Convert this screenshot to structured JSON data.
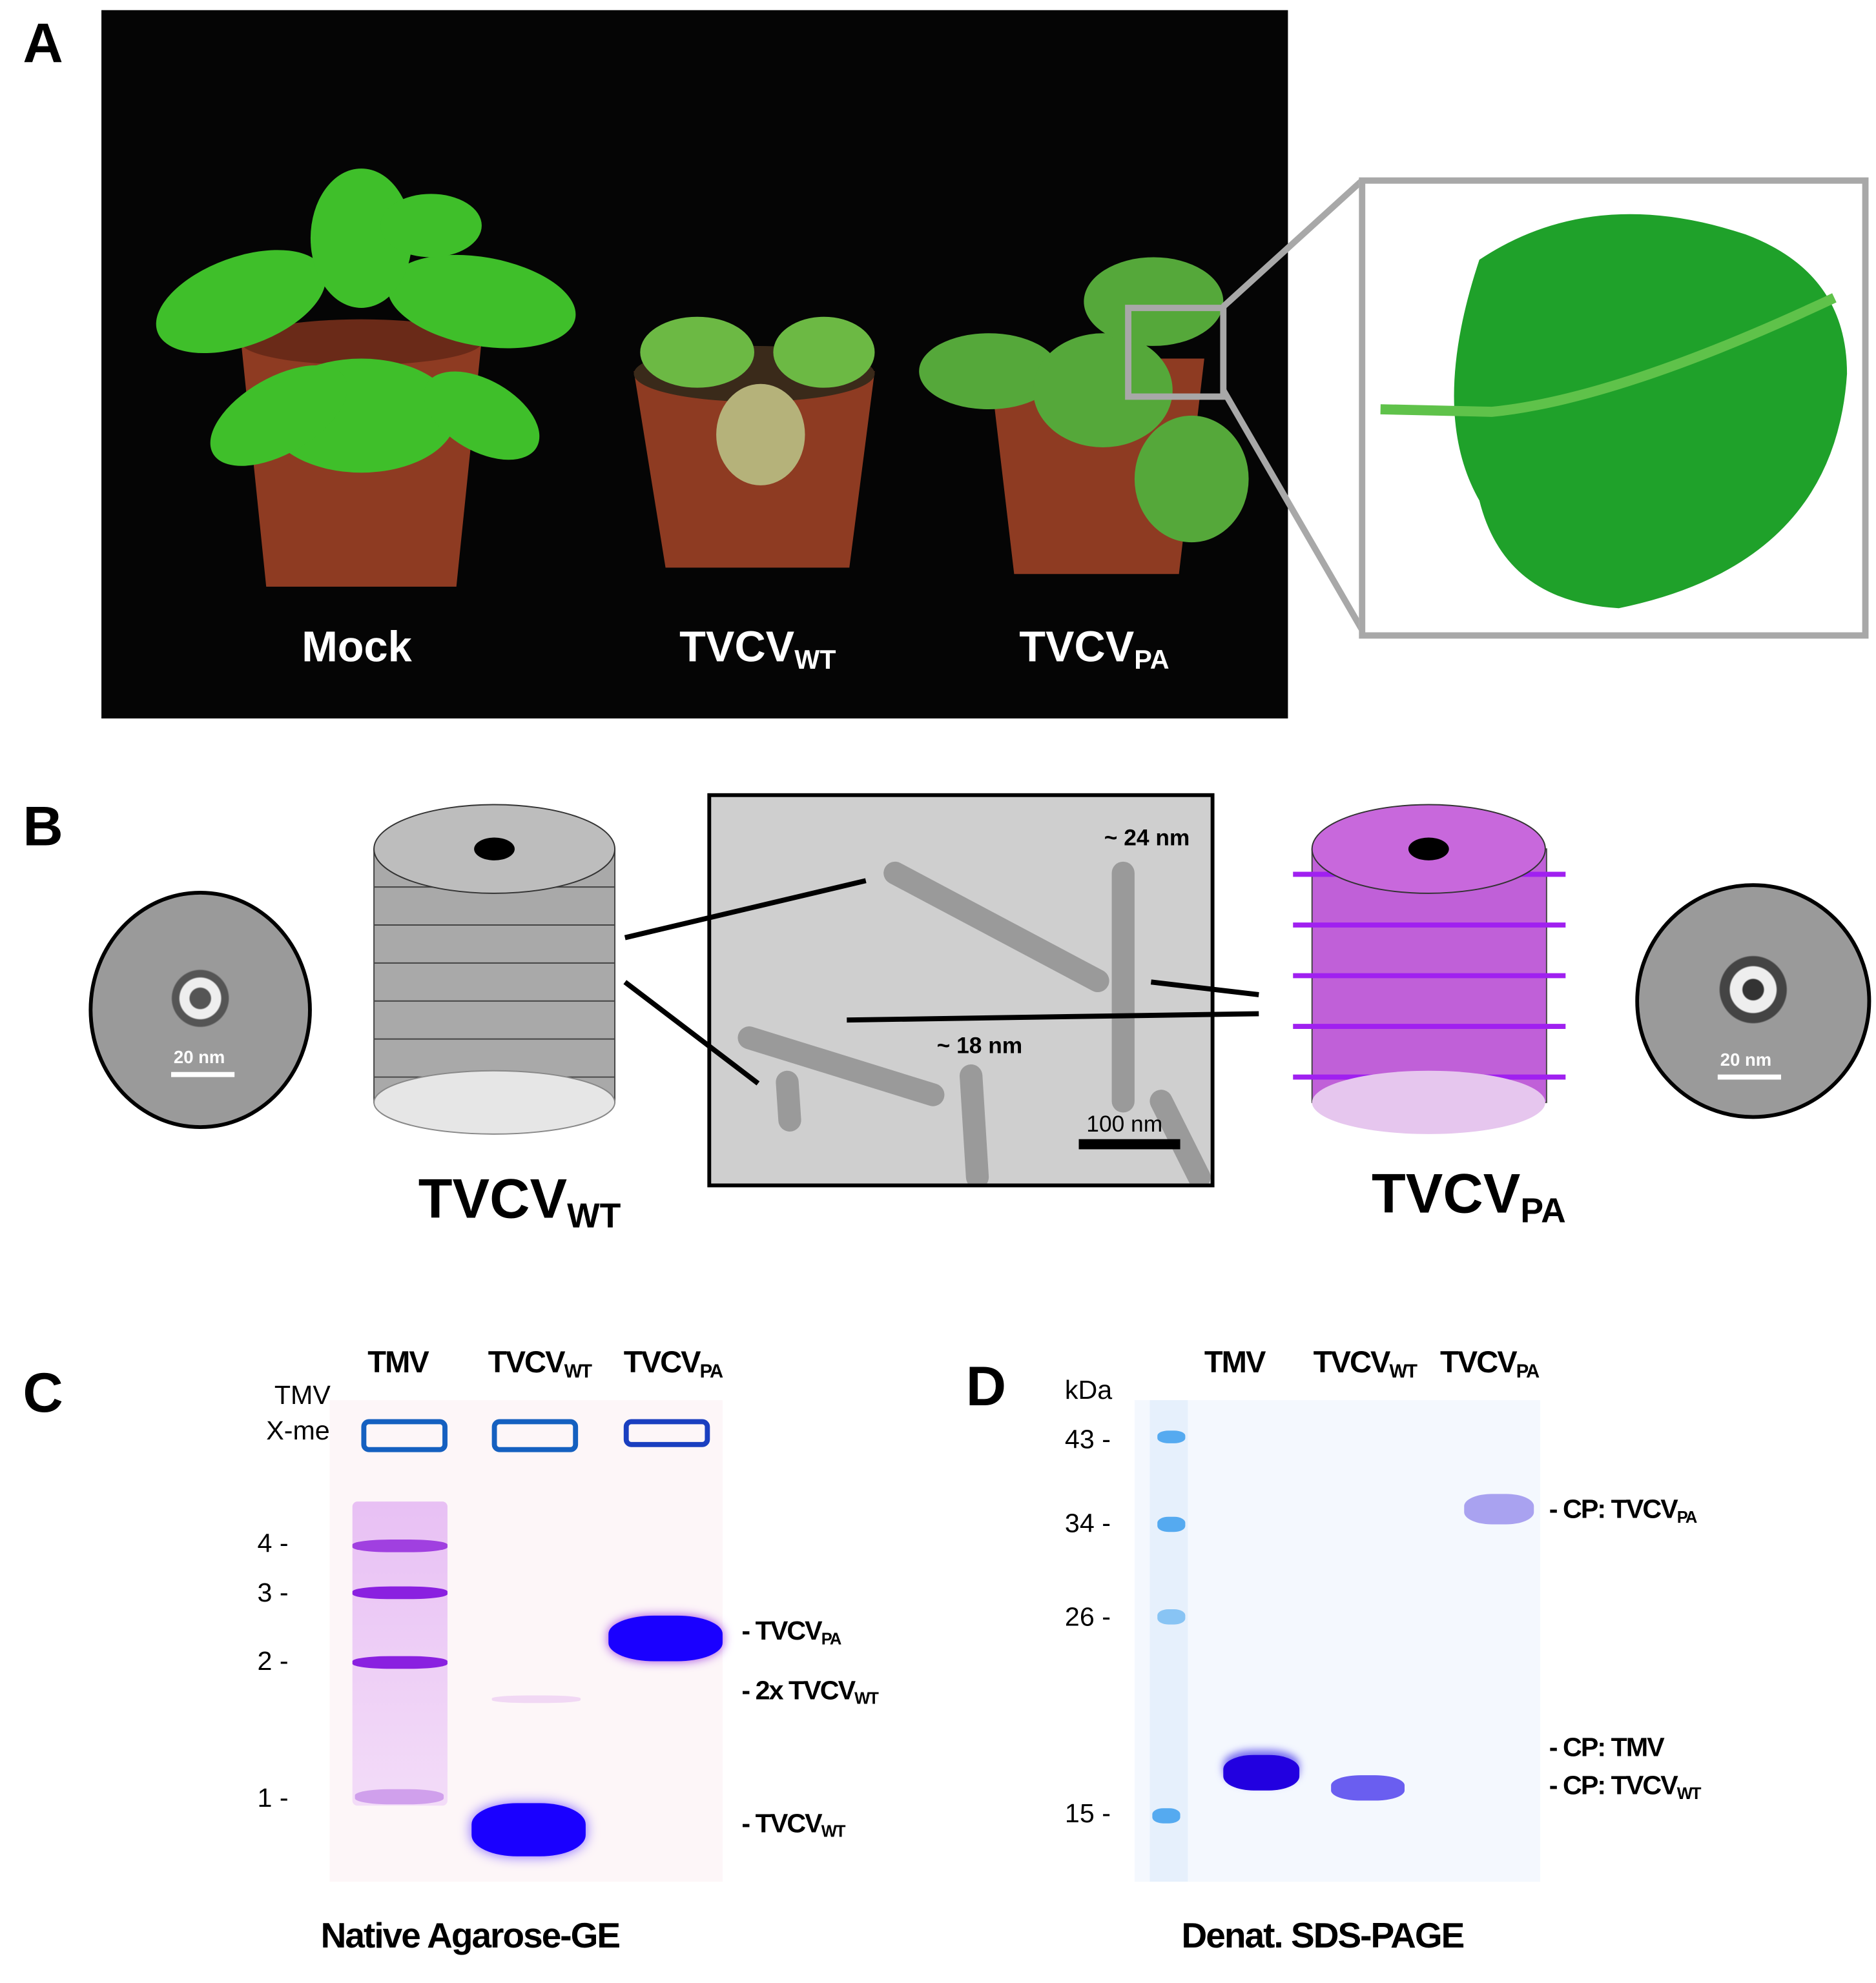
{
  "panels": {
    "a": {
      "label": "A",
      "plants": [
        {
          "main": "Mock",
          "sub": ""
        },
        {
          "main": "TVCV",
          "sub": "WT"
        },
        {
          "main": "TVCV",
          "sub": "PA"
        }
      ]
    },
    "b": {
      "label": "B",
      "wt": {
        "main": "TVCV",
        "sub": "WT"
      },
      "pa": {
        "main": "TVCV",
        "sub": "PA"
      },
      "scale_left": "20 nm",
      "scale_right": "20 nm",
      "tem_24": "~ 24 nm",
      "tem_18": "~ 18 nm",
      "tem_scale": "100 nm",
      "colors": {
        "wt_body": "#a9a9a9",
        "pa_body": "#c060d8",
        "pa_linker": "#a020f0"
      }
    },
    "c": {
      "label": "C",
      "title": "Native Agarose-GE",
      "marker_title": [
        "TMV",
        "X-mer"
      ],
      "lanes": [
        {
          "main": "TMV",
          "sub": ""
        },
        {
          "main": "TVCV",
          "sub": "WT"
        },
        {
          "main": "TVCV",
          "sub": "PA"
        }
      ],
      "markers": [
        "4 -",
        "3 -",
        "2 -",
        "1 -"
      ],
      "bands": [
        {
          "main": "- TVCV",
          "sub": "PA"
        },
        {
          "main": "- 2x TVCV",
          "sub": "WT"
        },
        {
          "main": "- TVCV",
          "sub": "WT"
        }
      ],
      "colors": {
        "gel": "#fdf6f8",
        "stain": "#1a00ff",
        "ladder": "#a040e0"
      }
    },
    "d": {
      "label": "D",
      "title": "Denat. SDS-PAGE",
      "unit": "kDa",
      "lanes": [
        {
          "main": "TMV",
          "sub": ""
        },
        {
          "main": "TVCV",
          "sub": "WT"
        },
        {
          "main": "TVCV",
          "sub": "PA"
        }
      ],
      "markers": [
        "43 -",
        "34 -",
        "26 -",
        "15 -"
      ],
      "bands": [
        {
          "main": "- CP: TVCV",
          "sub": "PA"
        },
        {
          "main": "- CP: TMV",
          "sub": ""
        },
        {
          "main": "- CP: TVCV",
          "sub": "WT"
        }
      ],
      "colors": {
        "gel": "#f4f8fe",
        "ladder": "#55aaf0",
        "stain": "#2200e0"
      }
    }
  }
}
